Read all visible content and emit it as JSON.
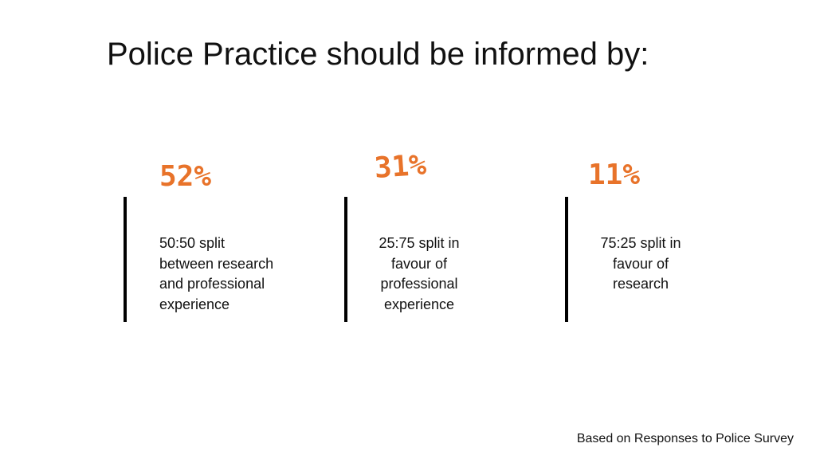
{
  "title": "Police Practice should be informed by:",
  "accent_color": "#e8732a",
  "stats": [
    {
      "percent": "52%",
      "lines": [
        "50:50 split",
        "between research",
        "and professional",
        "experience"
      ]
    },
    {
      "percent": "31%",
      "lines": [
        "25:75 split in",
        "favour of",
        "professional",
        "experience"
      ]
    },
    {
      "percent": "11%",
      "lines": [
        "75:25 split in",
        "favour of",
        "research"
      ]
    }
  ],
  "footnote": "Based on Responses to Police Survey"
}
